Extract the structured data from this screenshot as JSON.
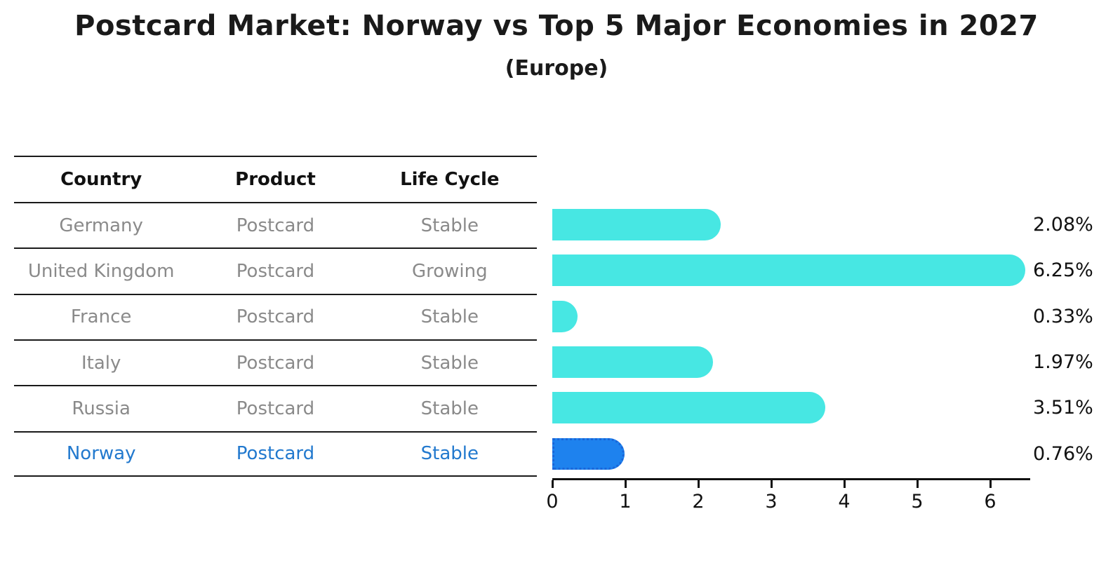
{
  "title": "Postcard Market: Norway vs Top 5 Major Economies in 2027",
  "subtitle": "(Europe)",
  "colors": {
    "bar": "#47e7e3",
    "highlight_bar": "#1e82ee",
    "highlight_border": "#1a66d9",
    "highlight_text": "#2279ce",
    "row_text": "#8a8a8a",
    "header_text": "#111111",
    "axis": "#111111"
  },
  "table": {
    "headers": [
      "Country",
      "Product",
      "Life Cycle"
    ],
    "rows": [
      {
        "country": "Germany",
        "product": "Postcard",
        "life_cycle": "Stable",
        "highlight": false
      },
      {
        "country": "United Kingdom",
        "product": "Postcard",
        "life_cycle": "Growing",
        "highlight": false
      },
      {
        "country": "France",
        "product": "Postcard",
        "life_cycle": "Stable",
        "highlight": false
      },
      {
        "country": "Italy",
        "product": "Postcard",
        "life_cycle": "Stable",
        "highlight": false
      },
      {
        "country": "Russia",
        "product": "Postcard",
        "life_cycle": "Stable",
        "highlight": false
      },
      {
        "country": "Norway",
        "product": "Postcard",
        "life_cycle": "Stable",
        "highlight": true
      }
    ]
  },
  "chart_data": {
    "type": "bar",
    "orientation": "horizontal",
    "title": "Postcard Market: Norway vs Top 5 Major Economies in 2027 (Europe)",
    "categories": [
      "Germany",
      "United Kingdom",
      "France",
      "Italy",
      "Russia",
      "Norway"
    ],
    "values": [
      2.08,
      6.25,
      0.33,
      1.97,
      3.51,
      0.76
    ],
    "value_labels": [
      "2.08%",
      "6.25%",
      "0.33%",
      "1.97%",
      "3.51%",
      "0.76%"
    ],
    "highlight_index": 5,
    "xlabel": "",
    "ylabel": "",
    "xlim": [
      0,
      6.55
    ],
    "xticks": [
      0,
      1,
      2,
      3,
      4,
      5,
      6
    ],
    "xtick_labels": [
      "0",
      "1",
      "2",
      "3",
      "4",
      "5",
      "6"
    ],
    "grid": false,
    "legend": "none"
  }
}
